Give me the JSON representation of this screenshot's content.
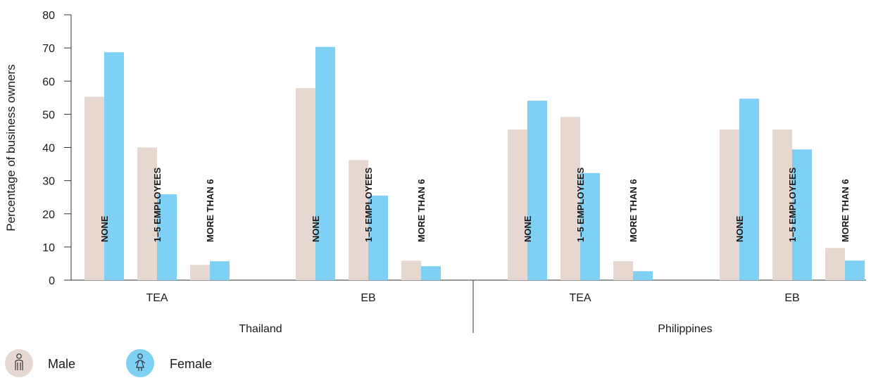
{
  "chart_data": {
    "type": "bar",
    "ylabel": "Percentage of business owners",
    "ylim": [
      0,
      80
    ],
    "yticks": [
      0,
      10,
      20,
      30,
      40,
      50,
      60,
      70,
      80
    ],
    "countries": [
      "Thailand",
      "Philippines"
    ],
    "groups": [
      {
        "country": "Thailand",
        "label": "TEA",
        "categories": [
          "NONE",
          "1–5 EMPLOYEES",
          "MORE THAN 6"
        ],
        "male": [
          55.3,
          40.0,
          4.6
        ],
        "female": [
          68.7,
          25.9,
          5.7
        ]
      },
      {
        "country": "Thailand",
        "label": "EB",
        "categories": [
          "NONE",
          "1–5 EMPLOYEES",
          "MORE THAN 6"
        ],
        "male": [
          57.9,
          36.2,
          5.9
        ],
        "female": [
          70.3,
          25.5,
          4.2
        ]
      },
      {
        "country": "Philippines",
        "label": "TEA",
        "categories": [
          "NONE",
          "1–5 EMPLOYEES",
          "MORE THAN 6"
        ],
        "male": [
          45.4,
          49.2,
          5.7
        ],
        "female": [
          54.1,
          32.3,
          2.7
        ]
      },
      {
        "country": "Philippines",
        "label": "EB",
        "categories": [
          "NONE",
          "1–5 EMPLOYEES",
          "MORE THAN 6"
        ],
        "male": [
          45.4,
          45.4,
          9.7
        ],
        "female": [
          54.7,
          39.4,
          5.9
        ]
      }
    ],
    "series": [
      {
        "name": "Male",
        "color": "#e6d8d1",
        "icon": "male-person-icon"
      },
      {
        "name": "Female",
        "color": "#7fd0f5",
        "icon": "female-person-icon"
      }
    ],
    "legend_position": "bottom-left",
    "grid": false
  }
}
